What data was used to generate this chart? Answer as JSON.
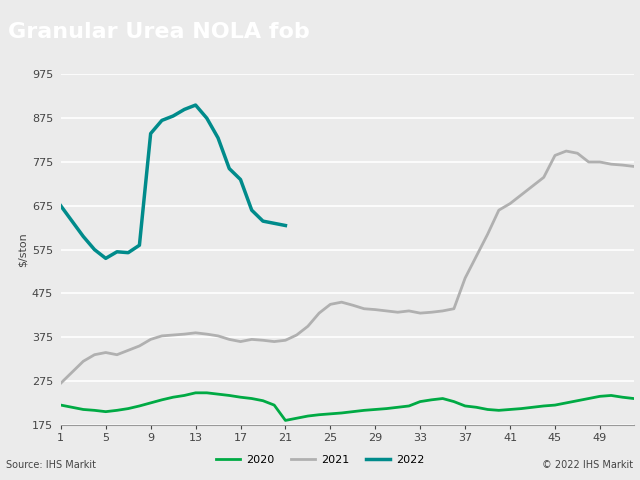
{
  "title": "Granular Urea NOLA fob",
  "ylabel": "$/ston",
  "xlabel_ticks": [
    1,
    5,
    9,
    13,
    17,
    21,
    25,
    29,
    33,
    37,
    41,
    45,
    49
  ],
  "ylim": [
    175,
    975
  ],
  "yticks": [
    175,
    275,
    375,
    475,
    575,
    675,
    775,
    875,
    975
  ],
  "title_bg": "#808080",
  "title_color": "#ffffff",
  "plot_bg": "#ebebeb",
  "fig_bg": "#ebebeb",
  "source_text": "Source: IHS Markit",
  "copyright_text": "© 2022 IHS Markit",
  "legend": [
    {
      "label": "2020",
      "color": "#00aa44"
    },
    {
      "label": "2021",
      "color": "#b0b0b0"
    },
    {
      "label": "2022",
      "color": "#008b8b"
    }
  ],
  "series_2020": {
    "x": [
      1,
      2,
      3,
      4,
      5,
      6,
      7,
      8,
      9,
      10,
      11,
      12,
      13,
      14,
      15,
      16,
      17,
      18,
      19,
      20,
      21,
      22,
      23,
      24,
      25,
      26,
      27,
      28,
      29,
      30,
      31,
      32,
      33,
      34,
      35,
      36,
      37,
      38,
      39,
      40,
      41,
      42,
      43,
      44,
      45,
      46,
      47,
      48,
      49,
      50,
      51,
      52
    ],
    "y": [
      220,
      215,
      210,
      208,
      205,
      208,
      212,
      218,
      225,
      232,
      238,
      242,
      248,
      248,
      245,
      242,
      238,
      235,
      230,
      220,
      185,
      190,
      195,
      198,
      200,
      202,
      205,
      208,
      210,
      212,
      215,
      218,
      228,
      232,
      235,
      228,
      218,
      215,
      210,
      208,
      210,
      212,
      215,
      218,
      220,
      225,
      230,
      235,
      240,
      242,
      238,
      235
    ]
  },
  "series_2021": {
    "x": [
      1,
      2,
      3,
      4,
      5,
      6,
      7,
      8,
      9,
      10,
      11,
      12,
      13,
      14,
      15,
      16,
      17,
      18,
      19,
      20,
      21,
      22,
      23,
      24,
      25,
      26,
      27,
      28,
      29,
      30,
      31,
      32,
      33,
      34,
      35,
      36,
      37,
      38,
      39,
      40,
      41,
      42,
      43,
      44,
      45,
      46,
      47,
      48,
      49,
      50,
      51,
      52
    ],
    "y": [
      270,
      295,
      320,
      335,
      340,
      335,
      345,
      355,
      370,
      378,
      380,
      382,
      385,
      382,
      378,
      370,
      365,
      370,
      368,
      365,
      368,
      380,
      400,
      430,
      450,
      455,
      448,
      440,
      438,
      435,
      432,
      435,
      430,
      432,
      435,
      440,
      510,
      560,
      610,
      665,
      680,
      700,
      720,
      740,
      790,
      800,
      795,
      775,
      775,
      770,
      768,
      765
    ]
  },
  "series_2022": {
    "x": [
      1,
      2,
      3,
      4,
      5,
      6,
      7,
      8,
      9,
      10,
      11,
      12,
      13,
      14,
      15,
      16,
      17,
      18,
      19,
      20,
      21
    ],
    "y": [
      675,
      640,
      605,
      575,
      555,
      570,
      568,
      585,
      840,
      870,
      880,
      895,
      905,
      875,
      830,
      760,
      735,
      665,
      640,
      635,
      630
    ]
  }
}
